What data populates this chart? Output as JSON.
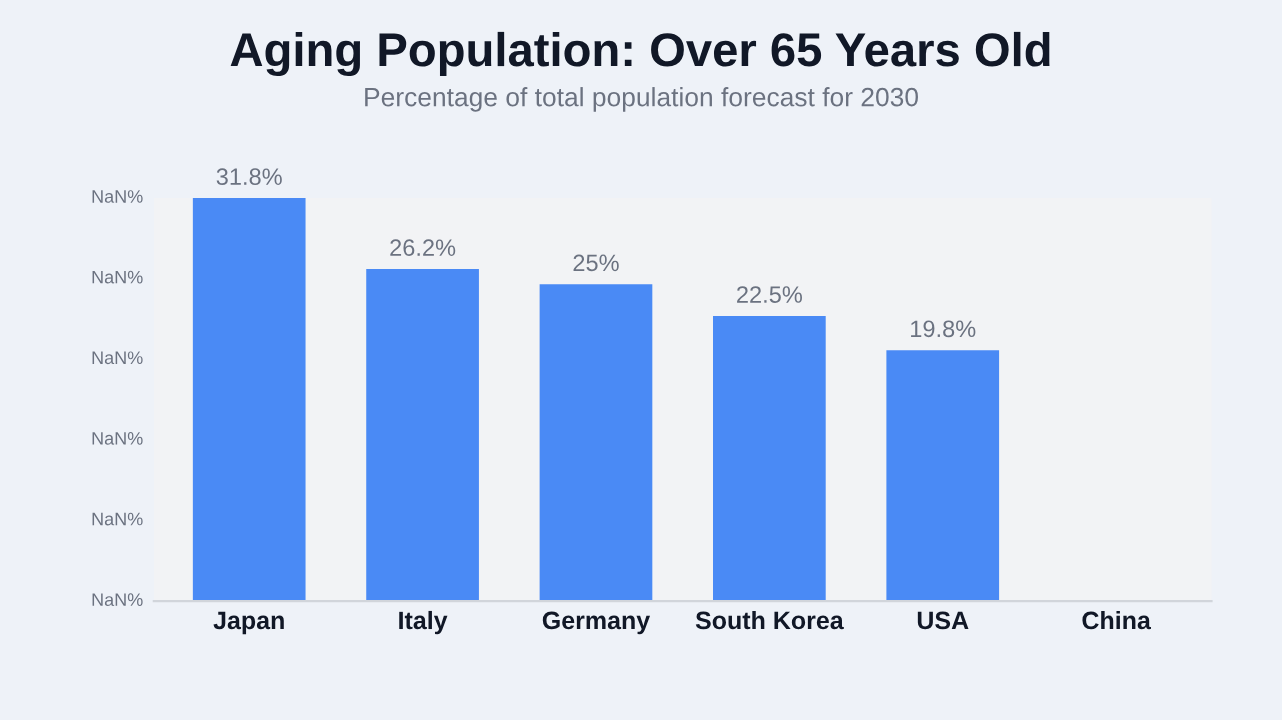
{
  "chart_data": {
    "type": "bar",
    "title": "Aging Population: Over 65 Years Old",
    "subtitle": "Percentage of total population forecast for 2030",
    "categories": [
      "Japan",
      "Italy",
      "Germany",
      "South Korea",
      "USA",
      "China"
    ],
    "values": [
      31.8,
      26.2,
      25,
      22.5,
      19.8,
      null
    ],
    "value_labels": [
      "31.8%",
      "26.2%",
      "25%",
      "22.5%",
      "19.8%",
      null
    ],
    "color": "#4a8af5",
    "annotations": [
      "NaN%",
      "NaN%",
      "NaN%",
      "NaN%",
      "NaN%",
      "NaN%"
    ],
    "tick_labels": "x",
    "grid": false
  }
}
